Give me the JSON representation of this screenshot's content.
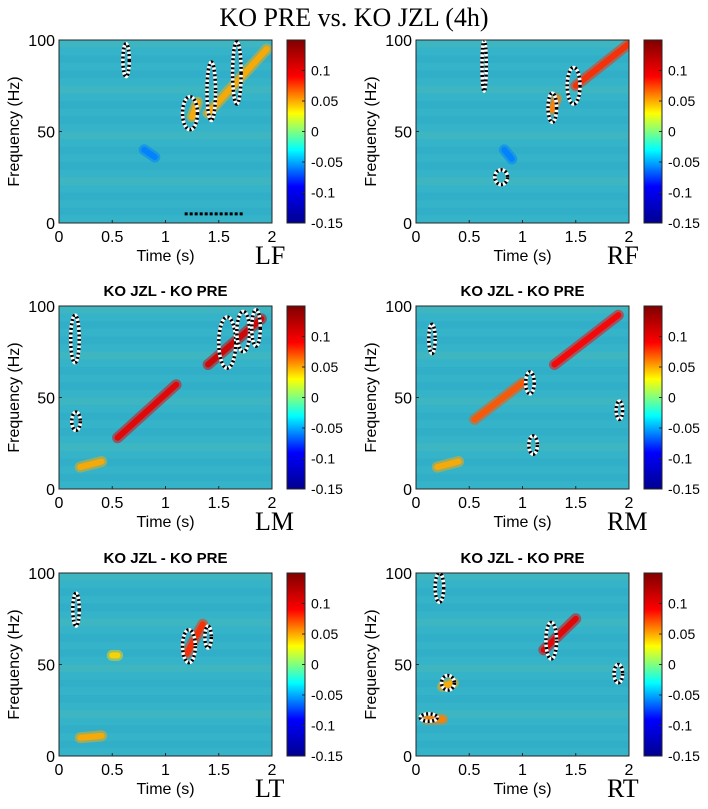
{
  "figure": {
    "title": "KO PRE vs. KO JZL (4h)",
    "x_label": "Time (s)",
    "y_label": "Frequency (Hz)",
    "x_ticks": [
      "0",
      "0.5",
      "1",
      "1.5",
      "2"
    ],
    "y_ticks": [
      "0",
      "50",
      "100"
    ],
    "colorbar_ticks": [
      "0.1",
      "0.05",
      "0",
      "-0.05",
      "-0.1",
      "-0.15"
    ],
    "colormap": [
      "#00008f",
      "#0000ff",
      "#00ffff",
      "#ffff00",
      "#ff0000",
      "#800000"
    ],
    "background": "#35b3c8"
  },
  "panels": [
    {
      "id": "LF",
      "label": "LF",
      "title": ""
    },
    {
      "id": "RF",
      "label": "RF",
      "title": ""
    },
    {
      "id": "LM",
      "label": "LM",
      "title": "KO JZL - KO PRE"
    },
    {
      "id": "RM",
      "label": "RM",
      "title": "KO JZL - KO PRE"
    },
    {
      "id": "LT",
      "label": "LT",
      "title": "KO JZL - KO PRE"
    },
    {
      "id": "RT",
      "label": "RT",
      "title": "KO JZL - KO PRE"
    }
  ],
  "chart_data": [
    {
      "panel": "LF",
      "type": "heatmap",
      "title": "",
      "xlabel": "Time (s)",
      "ylabel": "Frequency (Hz)",
      "xlim": [
        0,
        2
      ],
      "ylim": [
        0,
        100
      ],
      "clim": [
        -0.15,
        0.15
      ],
      "features": [
        {
          "t1": 1.4,
          "f1": 60,
          "t2": 1.95,
          "f2": 95,
          "value": 0.05
        },
        {
          "t1": 0.8,
          "f1": 40,
          "t2": 0.9,
          "f2": 36,
          "value": -0.06
        },
        {
          "t1": 1.25,
          "f1": 58,
          "t2": 1.3,
          "f2": 66,
          "value": 0.05
        }
      ],
      "significance_contours": [
        {
          "t": 0.63,
          "f": 89,
          "dt": 0.03,
          "df": 9
        },
        {
          "t": 1.23,
          "f": 60,
          "dt": 0.07,
          "df": 9
        },
        {
          "t": 1.43,
          "f": 72,
          "dt": 0.04,
          "df": 16
        },
        {
          "t": 1.67,
          "f": 82,
          "dt": 0.04,
          "df": 17
        }
      ],
      "significance_bars": [
        {
          "t1": 1.18,
          "t2": 1.73,
          "f": 5
        }
      ]
    },
    {
      "panel": "RF",
      "type": "heatmap",
      "title": "",
      "xlabel": "Time (s)",
      "ylabel": "Frequency (Hz)",
      "xlim": [
        0,
        2
      ],
      "ylim": [
        0,
        100
      ],
      "clim": [
        -0.15,
        0.15
      ],
      "features": [
        {
          "t1": 1.5,
          "f1": 75,
          "t2": 2.0,
          "f2": 98,
          "value": 0.08
        },
        {
          "t1": 0.83,
          "f1": 40,
          "t2": 0.9,
          "f2": 35,
          "value": -0.06
        },
        {
          "t1": 1.28,
          "f1": 62,
          "t2": 1.32,
          "f2": 68,
          "value": 0.06
        }
      ],
      "significance_contours": [
        {
          "t": 0.64,
          "f": 86,
          "dt": 0.02,
          "df": 14
        },
        {
          "t": 0.8,
          "f": 25,
          "dt": 0.06,
          "df": 4
        },
        {
          "t": 1.28,
          "f": 63,
          "dt": 0.04,
          "df": 8
        },
        {
          "t": 1.48,
          "f": 75,
          "dt": 0.06,
          "df": 10
        }
      ],
      "significance_bars": []
    },
    {
      "panel": "LM",
      "type": "heatmap",
      "title": "KO JZL - KO PRE",
      "xlabel": "Time (s)",
      "ylabel": "Frequency (Hz)",
      "xlim": [
        0,
        2
      ],
      "ylim": [
        0,
        100
      ],
      "clim": [
        -0.15,
        0.15
      ],
      "features": [
        {
          "t1": 0.55,
          "f1": 28,
          "t2": 1.1,
          "f2": 57,
          "value": 0.1
        },
        {
          "t1": 1.4,
          "f1": 68,
          "t2": 1.9,
          "f2": 93,
          "value": 0.11
        },
        {
          "t1": 0.2,
          "f1": 12,
          "t2": 0.4,
          "f2": 15,
          "value": 0.05
        }
      ],
      "significance_contours": [
        {
          "t": 0.15,
          "f": 82,
          "dt": 0.04,
          "df": 13
        },
        {
          "t": 0.16,
          "f": 37,
          "dt": 0.04,
          "df": 5
        },
        {
          "t": 1.58,
          "f": 80,
          "dt": 0.08,
          "df": 14
        },
        {
          "t": 1.73,
          "f": 86,
          "dt": 0.06,
          "df": 11
        },
        {
          "t": 1.85,
          "f": 88,
          "dt": 0.04,
          "df": 10
        }
      ],
      "significance_bars": []
    },
    {
      "panel": "RM",
      "type": "heatmap",
      "title": "KO JZL - KO PRE",
      "xlabel": "Time (s)",
      "ylabel": "Frequency (Hz)",
      "xlim": [
        0,
        2
      ],
      "ylim": [
        0,
        100
      ],
      "clim": [
        -0.15,
        0.15
      ],
      "features": [
        {
          "t1": 0.55,
          "f1": 38,
          "t2": 1.0,
          "f2": 58,
          "value": 0.07
        },
        {
          "t1": 1.3,
          "f1": 68,
          "t2": 1.9,
          "f2": 95,
          "value": 0.09
        },
        {
          "t1": 0.2,
          "f1": 12,
          "t2": 0.4,
          "f2": 15,
          "value": 0.05
        }
      ],
      "significance_contours": [
        {
          "t": 0.15,
          "f": 82,
          "dt": 0.03,
          "df": 8
        },
        {
          "t": 1.07,
          "f": 58,
          "dt": 0.04,
          "df": 6
        },
        {
          "t": 1.1,
          "f": 24,
          "dt": 0.04,
          "df": 5
        },
        {
          "t": 1.91,
          "f": 43,
          "dt": 0.03,
          "df": 5
        }
      ],
      "significance_bars": []
    },
    {
      "panel": "LT",
      "type": "heatmap",
      "title": "KO JZL - KO PRE",
      "xlabel": "Time (s)",
      "ylabel": "Frequency (Hz)",
      "xlim": [
        0,
        2
      ],
      "ylim": [
        0,
        100
      ],
      "clim": [
        -0.15,
        0.15
      ],
      "features": [
        {
          "t1": 1.2,
          "f1": 56,
          "t2": 1.35,
          "f2": 72,
          "value": 0.08
        },
        {
          "t1": 0.2,
          "f1": 10,
          "t2": 0.4,
          "f2": 11,
          "value": 0.05
        },
        {
          "t1": 0.5,
          "f1": 55,
          "t2": 0.55,
          "f2": 55,
          "value": 0.04
        }
      ],
      "significance_contours": [
        {
          "t": 0.16,
          "f": 80,
          "dt": 0.03,
          "df": 9
        },
        {
          "t": 1.22,
          "f": 60,
          "dt": 0.06,
          "df": 9
        },
        {
          "t": 1.4,
          "f": 65,
          "dt": 0.03,
          "df": 6
        }
      ],
      "significance_bars": []
    },
    {
      "panel": "RT",
      "type": "heatmap",
      "title": "KO JZL - KO PRE",
      "xlabel": "Time (s)",
      "ylabel": "Frequency (Hz)",
      "xlim": [
        0,
        2
      ],
      "ylim": [
        0,
        100
      ],
      "clim": [
        -0.15,
        0.15
      ],
      "features": [
        {
          "t1": 1.2,
          "f1": 58,
          "t2": 1.5,
          "f2": 75,
          "value": 0.1
        },
        {
          "t1": 0.25,
          "f1": 38,
          "t2": 0.35,
          "f2": 40,
          "value": 0.05
        },
        {
          "t1": 0.1,
          "f1": 20,
          "t2": 0.25,
          "f2": 20,
          "value": 0.06
        }
      ],
      "significance_contours": [
        {
          "t": 0.22,
          "f": 92,
          "dt": 0.04,
          "df": 8
        },
        {
          "t": 0.3,
          "f": 40,
          "dt": 0.06,
          "df": 4
        },
        {
          "t": 0.12,
          "f": 21,
          "dt": 0.08,
          "df": 2
        },
        {
          "t": 1.27,
          "f": 63,
          "dt": 0.05,
          "df": 10
        },
        {
          "t": 1.9,
          "f": 45,
          "dt": 0.04,
          "df": 5
        }
      ],
      "significance_bars": []
    }
  ]
}
